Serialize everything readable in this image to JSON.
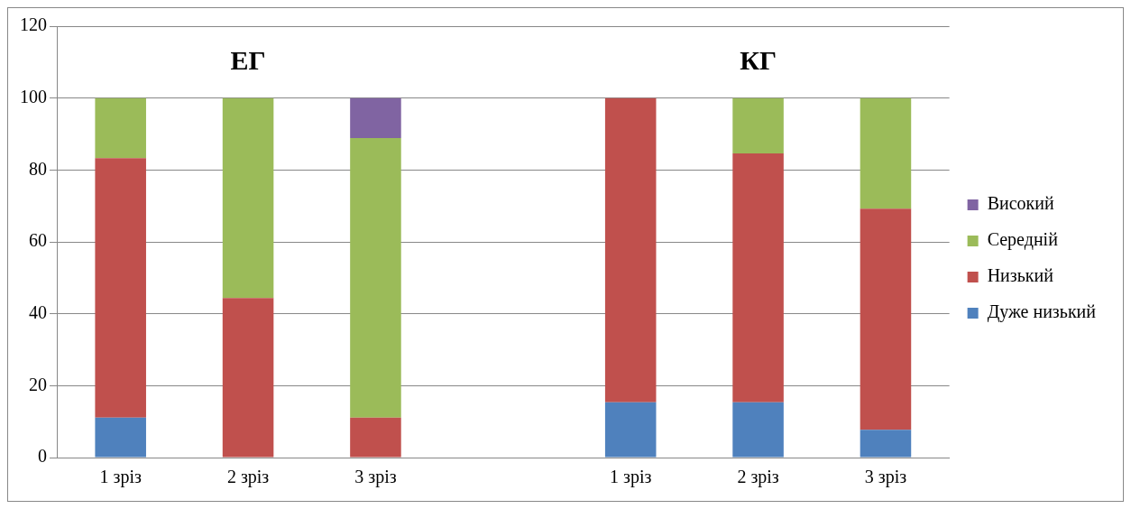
{
  "chart_data": {
    "type": "bar",
    "stacked": true,
    "categories": [
      "1 зріз",
      "2 зріз",
      "3 зріз",
      null,
      "1 зріз",
      "2 зріз",
      "3 зріз"
    ],
    "series": [
      {
        "name": "Дуже низький",
        "color": "#4f81bd",
        "values": [
          11.1,
          0,
          0,
          null,
          15.4,
          15.4,
          7.7
        ]
      },
      {
        "name": "Низький",
        "color": "#c0504d",
        "values": [
          72.2,
          44.4,
          11.1,
          null,
          84.6,
          69.2,
          61.5
        ]
      },
      {
        "name": "Середній",
        "color": "#9bbb59",
        "values": [
          16.7,
          55.6,
          77.8,
          null,
          0,
          15.4,
          30.8
        ]
      },
      {
        "name": "Високий",
        "color": "#8064a2",
        "values": [
          0,
          0,
          11.1,
          null,
          0,
          0,
          0
        ]
      }
    ],
    "ylim": [
      0,
      120
    ],
    "yticks": [
      0,
      20,
      40,
      60,
      80,
      100,
      120
    ],
    "grid": "y",
    "legend": "right",
    "annotations": [
      "ЕГ",
      "КГ"
    ]
  }
}
